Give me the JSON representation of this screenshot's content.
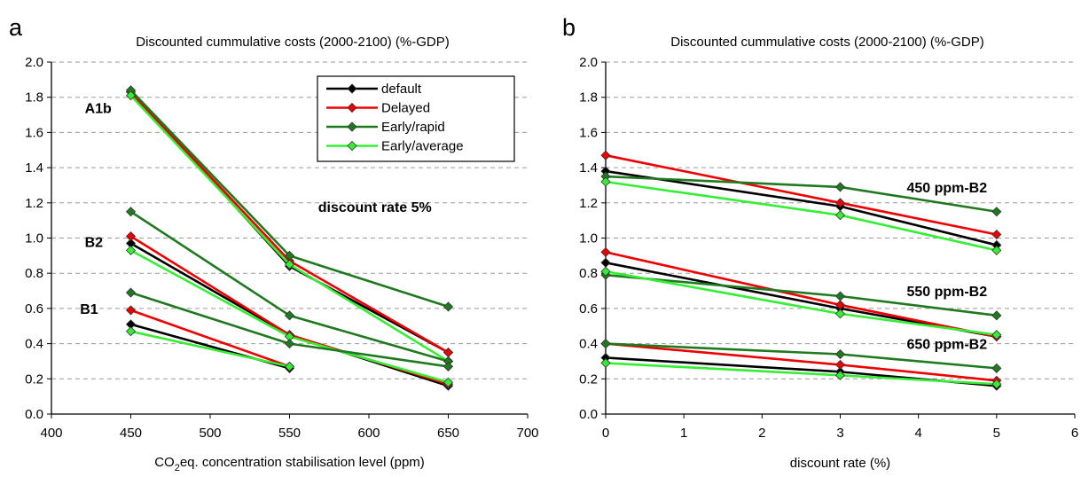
{
  "chart_data": [
    {
      "type": "line",
      "panel_label": "a",
      "title": "Discounted cummulative costs (2000-2100) (%-GDP)",
      "xlabel_parts": [
        "CO",
        "2",
        "eq. concentration stabilisation level (ppm)"
      ],
      "ylabel": "",
      "xlim": [
        400,
        700
      ],
      "ylim": [
        0,
        2.0
      ],
      "x_ticks": [
        400,
        450,
        500,
        550,
        600,
        650,
        700
      ],
      "y_ticks": [
        0.0,
        0.2,
        0.4,
        0.6,
        0.8,
        1.0,
        1.2,
        1.4,
        1.6,
        1.8,
        2.0
      ],
      "grid": "horizontal dashed",
      "legend_position": "top-right",
      "legend": [
        {
          "name": "default",
          "color": "#000000"
        },
        {
          "name": "Delayed",
          "color": "#ee0000"
        },
        {
          "name": "Early/rapid",
          "color": "#1f7a1f"
        },
        {
          "name": "Early/average",
          "color": "#33ee33"
        }
      ],
      "annotations": [
        {
          "text": "A1b",
          "x": 421,
          "y": 1.74
        },
        {
          "text": "B2",
          "x": 421,
          "y": 0.98
        },
        {
          "text": "B1",
          "x": 418,
          "y": 0.6
        },
        {
          "text": "discount rate 5%",
          "x": 568,
          "y": 1.18
        }
      ],
      "series": [
        {
          "group": "A1b",
          "style": "default",
          "x": [
            450,
            550,
            650
          ],
          "y": [
            1.83,
            0.84,
            0.35
          ]
        },
        {
          "group": "A1b",
          "style": "Delayed",
          "x": [
            450,
            550,
            650
          ],
          "y": [
            1.83,
            0.87,
            0.35
          ]
        },
        {
          "group": "A1b",
          "style": "Early/rapid",
          "x": [
            450,
            550,
            650
          ],
          "y": [
            1.84,
            0.9,
            0.61
          ]
        },
        {
          "group": "A1b",
          "style": "Early/average",
          "x": [
            450,
            550,
            650
          ],
          "y": [
            1.81,
            0.85,
            0.3
          ]
        },
        {
          "group": "B2",
          "style": "default",
          "x": [
            450,
            550,
            650
          ],
          "y": [
            0.97,
            0.45,
            0.16
          ]
        },
        {
          "group": "B2",
          "style": "Delayed",
          "x": [
            450,
            550,
            650
          ],
          "y": [
            1.01,
            0.45,
            0.17
          ]
        },
        {
          "group": "B2",
          "style": "Early/rapid",
          "x": [
            450,
            550,
            650
          ],
          "y": [
            1.15,
            0.56,
            0.3
          ]
        },
        {
          "group": "B2",
          "style": "Early/average",
          "x": [
            450,
            550,
            650
          ],
          "y": [
            0.93,
            0.44,
            0.18
          ]
        },
        {
          "group": "B1",
          "style": "default",
          "x": [
            450,
            550
          ],
          "y": [
            0.51,
            0.26
          ]
        },
        {
          "group": "B1",
          "style": "Delayed",
          "x": [
            450,
            550
          ],
          "y": [
            0.59,
            0.27
          ]
        },
        {
          "group": "B1",
          "style": "Early/rapid",
          "x": [
            450,
            550,
            650
          ],
          "y": [
            0.69,
            0.4,
            0.27
          ]
        },
        {
          "group": "B1",
          "style": "Early/average",
          "x": [
            450,
            550
          ],
          "y": [
            0.47,
            0.27
          ]
        }
      ]
    },
    {
      "type": "line",
      "panel_label": "b",
      "title": "Discounted cummulative costs (2000-2100) (%-GDP)",
      "xlabel": "discount rate (%)",
      "ylabel": "",
      "xlim": [
        0,
        6
      ],
      "ylim": [
        0,
        2.0
      ],
      "x_ticks": [
        0,
        1,
        2,
        3,
        4,
        5,
        6
      ],
      "y_ticks": [
        0.0,
        0.2,
        0.4,
        0.6,
        0.8,
        1.0,
        1.2,
        1.4,
        1.6,
        1.8,
        2.0
      ],
      "grid": "horizontal dashed",
      "annotations": [
        {
          "text": "450 ppm-B2",
          "x": 3.85,
          "y": 1.29
        },
        {
          "text": "550 ppm-B2",
          "x": 3.85,
          "y": 0.7
        },
        {
          "text": "650 ppm-B2",
          "x": 3.85,
          "y": 0.4
        }
      ],
      "series": [
        {
          "group": "450 ppm-B2",
          "style": "default",
          "x": [
            0,
            3,
            5
          ],
          "y": [
            1.38,
            1.18,
            0.96
          ]
        },
        {
          "group": "450 ppm-B2",
          "style": "Delayed",
          "x": [
            0,
            3,
            5
          ],
          "y": [
            1.47,
            1.2,
            1.02
          ]
        },
        {
          "group": "450 ppm-B2",
          "style": "Early/rapid",
          "x": [
            0,
            3,
            5
          ],
          "y": [
            1.35,
            1.29,
            1.15
          ]
        },
        {
          "group": "450 ppm-B2",
          "style": "Early/average",
          "x": [
            0,
            3,
            5
          ],
          "y": [
            1.32,
            1.13,
            0.93
          ]
        },
        {
          "group": "550 ppm-B2",
          "style": "default",
          "x": [
            0,
            3,
            5
          ],
          "y": [
            0.86,
            0.6,
            0.44
          ]
        },
        {
          "group": "550 ppm-B2",
          "style": "Delayed",
          "x": [
            0,
            3,
            5
          ],
          "y": [
            0.92,
            0.62,
            0.44
          ]
        },
        {
          "group": "550 ppm-B2",
          "style": "Early/rapid",
          "x": [
            0,
            3,
            5
          ],
          "y": [
            0.79,
            0.67,
            0.56
          ]
        },
        {
          "group": "550 ppm-B2",
          "style": "Early/average",
          "x": [
            0,
            3,
            5
          ],
          "y": [
            0.81,
            0.57,
            0.45
          ]
        },
        {
          "group": "650 ppm-B2",
          "style": "default",
          "x": [
            0,
            3,
            5
          ],
          "y": [
            0.32,
            0.24,
            0.16
          ]
        },
        {
          "group": "650 ppm-B2",
          "style": "Delayed",
          "x": [
            0,
            3,
            5
          ],
          "y": [
            0.4,
            0.28,
            0.19
          ]
        },
        {
          "group": "650 ppm-B2",
          "style": "Early/rapid",
          "x": [
            0,
            3,
            5
          ],
          "y": [
            0.4,
            0.34,
            0.26
          ]
        },
        {
          "group": "650 ppm-B2",
          "style": "Early/average",
          "x": [
            0,
            3,
            5
          ],
          "y": [
            0.29,
            0.22,
            0.17
          ]
        }
      ]
    }
  ]
}
